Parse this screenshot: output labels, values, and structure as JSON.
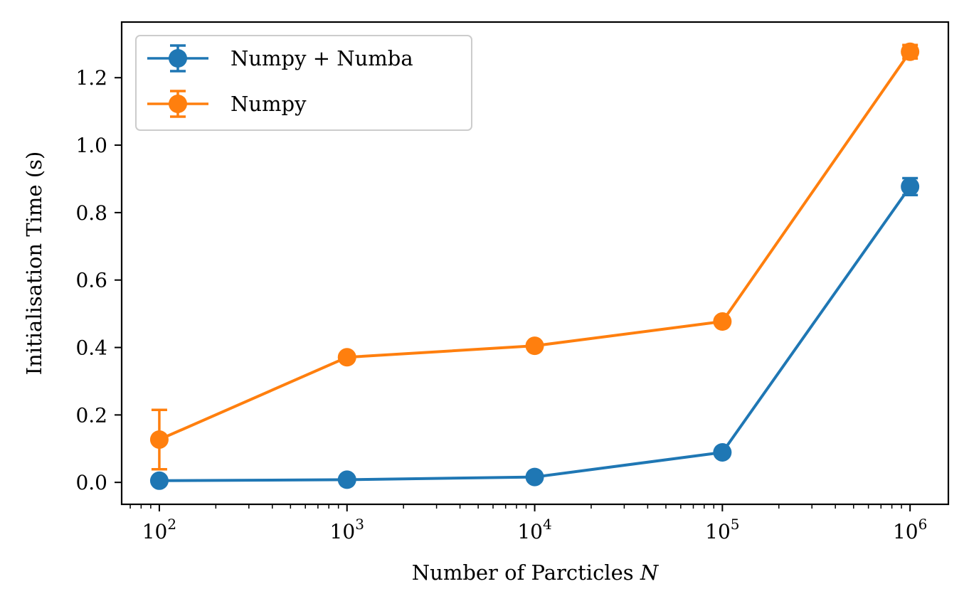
{
  "chart_data": {
    "type": "line",
    "xscale": "log",
    "x": [
      100,
      1000,
      10000,
      100000,
      1000000
    ],
    "xlim": [
      63,
      1600000
    ],
    "ylim": [
      -0.065,
      1.365
    ],
    "xlabel": "Number of Parcticles N",
    "xlabel_main": "Number of Parcticles ",
    "xlabel_var": "N",
    "ylabel": "Initialisation Time (s)",
    "x_ticks": [
      {
        "value": 100,
        "base": "10",
        "exp": "2"
      },
      {
        "value": 1000,
        "base": "10",
        "exp": "3"
      },
      {
        "value": 10000,
        "base": "10",
        "exp": "4"
      },
      {
        "value": 100000,
        "base": "10",
        "exp": "5"
      },
      {
        "value": 1000000,
        "base": "10",
        "exp": "6"
      }
    ],
    "y_ticks": [
      "0.0",
      "0.2",
      "0.4",
      "0.6",
      "0.8",
      "1.0",
      "1.2"
    ],
    "y_tick_values": [
      0.0,
      0.2,
      0.4,
      0.6,
      0.8,
      1.0,
      1.2
    ],
    "grid": false,
    "legend_position": "top-left",
    "series": [
      {
        "name": "Numpy + Numba",
        "color": "#1f77b4",
        "values": [
          0.005,
          0.008,
          0.016,
          0.089,
          0.877
        ],
        "errors": [
          0.003,
          0.004,
          0.004,
          0.008,
          0.025
        ]
      },
      {
        "name": "Numpy",
        "color": "#ff7f0e",
        "values": [
          0.127,
          0.371,
          0.405,
          0.477,
          1.277
        ],
        "errors": [
          0.088,
          0.005,
          0.006,
          0.008,
          0.02
        ]
      }
    ]
  }
}
